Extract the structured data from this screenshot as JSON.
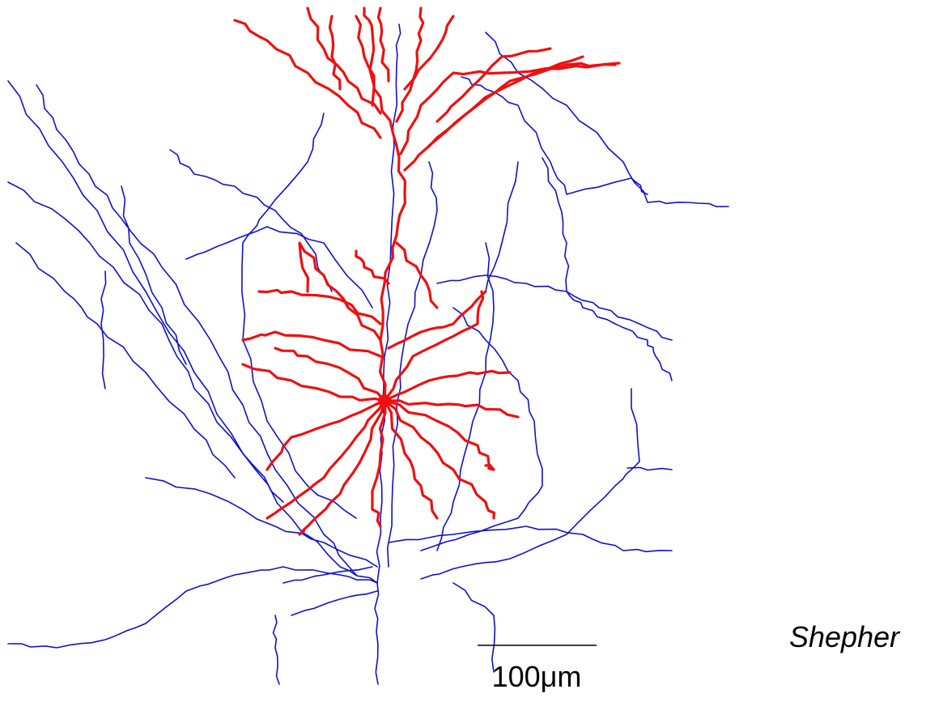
{
  "scale_bar": {
    "label": "100μm"
  },
  "credit": "Shepher"
}
